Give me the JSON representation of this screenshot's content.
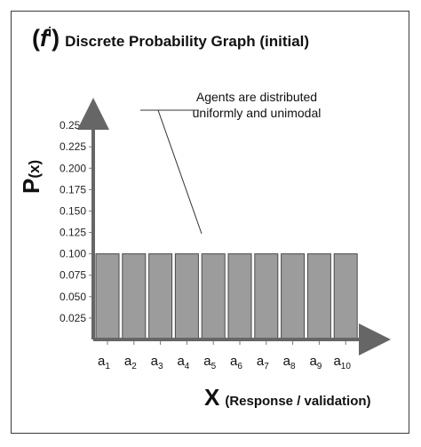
{
  "chart_data": {
    "type": "bar",
    "title_symbol": "f",
    "title_superscript": "i",
    "title": "Discrete Probability Graph (initial)",
    "ylabel_main": "P",
    "ylabel_arg": "(x)",
    "xlabel_main": "X",
    "xlabel_detail": "(Response / validation)",
    "categories": [
      {
        "base": "a",
        "sub": "1"
      },
      {
        "base": "a",
        "sub": "2"
      },
      {
        "base": "a",
        "sub": "3"
      },
      {
        "base": "a",
        "sub": "4"
      },
      {
        "base": "a",
        "sub": "5"
      },
      {
        "base": "a",
        "sub": "6"
      },
      {
        "base": "a",
        "sub": "7"
      },
      {
        "base": "a",
        "sub": "8"
      },
      {
        "base": "a",
        "sub": "9"
      },
      {
        "base": "a",
        "sub": "10"
      }
    ],
    "values": [
      0.1,
      0.1,
      0.1,
      0.1,
      0.1,
      0.1,
      0.1,
      0.1,
      0.1,
      0.1
    ],
    "yticks": [
      "0.025",
      "0.050",
      "0.075",
      "0.100",
      "0.125",
      "0.150",
      "0.175",
      "0.200",
      "0.225",
      "0.250"
    ],
    "ylim": [
      0,
      0.275
    ],
    "annotation": {
      "line1": "Agents are distributed",
      "line2": "uniformly and unimodal"
    },
    "colors": {
      "bar_fill": "#9c9c9c",
      "bar_stroke": "#4a4a4a",
      "axis": "#666666"
    }
  }
}
